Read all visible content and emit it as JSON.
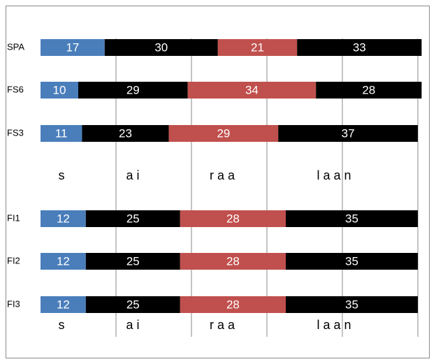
{
  "chart_data": {
    "type": "stacked-bar-horizontal",
    "categories": [
      "SPA",
      "FS6",
      "FS3",
      "FI1",
      "FI2",
      "FI3"
    ],
    "series": [
      {
        "color": "#4a7ebb",
        "values": [
          17,
          10,
          11,
          12,
          12,
          12
        ]
      },
      {
        "color": "#000000",
        "values": [
          30,
          29,
          23,
          25,
          25,
          25
        ]
      },
      {
        "color": "#c0504d",
        "values": [
          21,
          34,
          29,
          28,
          28,
          28
        ]
      },
      {
        "color": "#000000",
        "values": [
          33,
          28,
          37,
          35,
          35,
          35
        ]
      }
    ],
    "xlim": [
      0,
      100
    ],
    "xticks": [
      20,
      40,
      60,
      80,
      100
    ],
    "grid": true,
    "annotations": {
      "syllables": [
        "s",
        "a i",
        "r a a",
        "l a a n"
      ]
    }
  }
}
